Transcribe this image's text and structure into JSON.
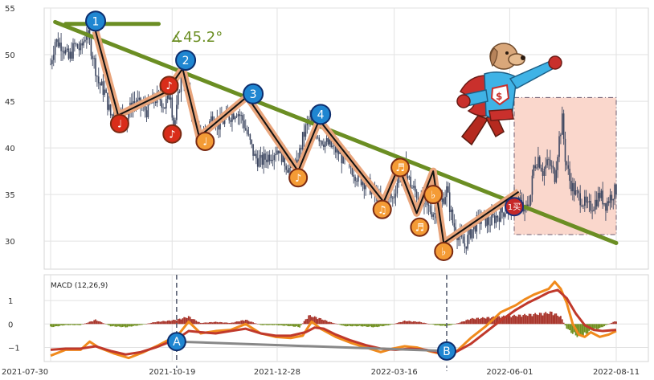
{
  "chart_data": [
    {
      "type": "candlestick",
      "ylim": [
        27,
        55
      ],
      "ygrid": [
        30,
        35,
        40,
        45,
        50,
        55
      ],
      "xlabels": [
        "2021-07-30",
        "2021-10-19",
        "2021-12-28",
        "2022-03-16",
        "2022-06-01",
        "2022-08-11"
      ],
      "x_tick_days": [
        0,
        81,
        151,
        229,
        306,
        377
      ],
      "x_range_days": [
        0,
        377
      ],
      "close_path": [
        [
          0,
          49
        ],
        [
          3,
          51.5
        ],
        [
          8,
          51
        ],
        [
          12,
          49.5
        ],
        [
          16,
          51
        ],
        [
          20,
          50.5
        ],
        [
          24,
          52.5
        ],
        [
          28,
          50
        ],
        [
          32,
          47
        ],
        [
          36,
          46
        ],
        [
          40,
          43.5
        ],
        [
          45,
          44
        ],
        [
          50,
          43
        ],
        [
          55,
          45
        ],
        [
          60,
          44.5
        ],
        [
          64,
          44
        ],
        [
          68,
          45
        ],
        [
          72,
          45.5
        ],
        [
          76,
          44.5
        ],
        [
          80,
          46
        ],
        [
          82,
          42
        ],
        [
          84,
          44
        ],
        [
          87,
          48
        ],
        [
          90,
          47
        ],
        [
          93,
          45
        ],
        [
          96,
          43
        ],
        [
          100,
          41
        ],
        [
          104,
          42
        ],
        [
          108,
          43.5
        ],
        [
          112,
          42.5
        ],
        [
          116,
          43
        ],
        [
          120,
          43.5
        ],
        [
          124,
          44
        ],
        [
          128,
          43
        ],
        [
          132,
          41
        ],
        [
          136,
          39
        ],
        [
          140,
          38.5
        ],
        [
          144,
          39
        ],
        [
          148,
          39.5
        ],
        [
          152,
          40
        ],
        [
          156,
          38.5
        ],
        [
          160,
          37.5
        ],
        [
          164,
          38
        ],
        [
          168,
          41
        ],
        [
          172,
          43
        ],
        [
          176,
          42
        ],
        [
          180,
          41
        ],
        [
          184,
          40.5
        ],
        [
          188,
          40
        ],
        [
          192,
          39.5
        ],
        [
          196,
          38.5
        ],
        [
          200,
          38
        ],
        [
          204,
          37
        ],
        [
          208,
          36.5
        ],
        [
          212,
          36
        ],
        [
          216,
          35
        ],
        [
          220,
          34
        ],
        [
          224,
          35
        ],
        [
          228,
          34.5
        ],
        [
          232,
          37
        ],
        [
          236,
          38
        ],
        [
          240,
          36
        ],
        [
          244,
          35
        ],
        [
          248,
          34
        ],
        [
          252,
          33.5
        ],
        [
          256,
          33
        ],
        [
          260,
          34
        ],
        [
          264,
          35.5
        ],
        [
          268,
          32
        ],
        [
          272,
          30.5
        ],
        [
          276,
          29.5
        ],
        [
          280,
          31
        ],
        [
          284,
          32
        ],
        [
          288,
          32.5
        ],
        [
          292,
          32
        ],
        [
          296,
          32.5
        ],
        [
          300,
          33
        ],
        [
          304,
          33.5
        ],
        [
          308,
          34
        ],
        [
          312,
          34.5
        ],
        [
          316,
          33
        ],
        [
          320,
          35
        ],
        [
          322,
          38
        ],
        [
          325,
          39
        ],
        [
          328,
          37.5
        ],
        [
          332,
          38.5
        ],
        [
          336,
          37
        ],
        [
          339,
          41
        ],
        [
          341,
          43
        ],
        [
          343,
          39
        ],
        [
          346,
          36.5
        ],
        [
          350,
          35
        ],
        [
          354,
          34.5
        ],
        [
          358,
          33.5
        ],
        [
          362,
          34
        ],
        [
          366,
          35
        ],
        [
          370,
          34
        ],
        [
          374,
          35
        ],
        [
          377,
          35.5
        ]
      ],
      "trendline": {
        "from": [
          3,
          53.5
        ],
        "to": [
          377,
          29.8
        ],
        "color": "#6b8e23"
      },
      "angle_label": "∡45.2°",
      "zigzag": [
        [
          30,
          52.5
        ],
        [
          45,
          43.5
        ],
        [
          77,
          46
        ],
        [
          88,
          48.5
        ],
        [
          99,
          41.2
        ],
        [
          131,
          45.5
        ],
        [
          165,
          37.5
        ],
        [
          179,
          43
        ],
        [
          222,
          34.2
        ],
        [
          232,
          38
        ],
        [
          244,
          33
        ],
        [
          255,
          37.5
        ],
        [
          262,
          29.8
        ],
        [
          312,
          35.3
        ]
      ],
      "numbered_markers": [
        {
          "label": "1",
          "day": 30,
          "price": 53.6
        },
        {
          "label": "2",
          "day": 90,
          "price": 49.4
        },
        {
          "label": "3",
          "day": 135,
          "price": 45.8
        },
        {
          "label": "4",
          "day": 180,
          "price": 43.6
        }
      ],
      "note_markers": [
        {
          "glyph": "♩",
          "day": 46,
          "price": 42.6,
          "fill": "#d92d1a"
        },
        {
          "glyph": "♪",
          "day": 79,
          "price": 46.7,
          "fill": "#d92d1a"
        },
        {
          "glyph": "♪",
          "day": 81,
          "price": 41.5,
          "fill": "#d92d1a"
        },
        {
          "glyph": "♩",
          "day": 103,
          "price": 40.7,
          "fill": "#f49b35"
        },
        {
          "glyph": "♪",
          "day": 165,
          "price": 36.8,
          "fill": "#f49b35"
        },
        {
          "glyph": "♫",
          "day": 221,
          "price": 33.4,
          "fill": "#f49b35"
        },
        {
          "glyph": "♬",
          "day": 233,
          "price": 37.9,
          "fill": "#f49b35"
        },
        {
          "glyph": "♬",
          "day": 246,
          "price": 31.5,
          "fill": "#f49b35"
        },
        {
          "glyph": "♭",
          "day": 255,
          "price": 35,
          "fill": "#f49b35"
        },
        {
          "glyph": "♭",
          "day": 262,
          "price": 28.9,
          "fill": "#f49b35"
        }
      ],
      "target_marker": {
        "label": "1买",
        "day": 309,
        "price": 33.7
      },
      "forecast_box": {
        "day_from": 309,
        "day_to": 377,
        "price_from": 30.7,
        "price_to": 45.4
      }
    },
    {
      "type": "line",
      "title": "MACD (12,26,9)",
      "ylim": [
        -1.6,
        2.1
      ],
      "yticks": [
        -1,
        0,
        1
      ],
      "dashed_vlines_days": [
        84,
        264
      ],
      "series": [
        {
          "color": "#f08a1c",
          "points": [
            [
              0,
              -1.35
            ],
            [
              10,
              -1.1
            ],
            [
              20,
              -1.1
            ],
            [
              26,
              -0.75
            ],
            [
              32,
              -1.0
            ],
            [
              42,
              -1.25
            ],
            [
              52,
              -1.45
            ],
            [
              62,
              -1.2
            ],
            [
              72,
              -0.9
            ],
            [
              78,
              -0.7
            ],
            [
              84,
              -0.55
            ],
            [
              92,
              0.1
            ],
            [
              100,
              -0.4
            ],
            [
              110,
              -0.3
            ],
            [
              120,
              -0.25
            ],
            [
              130,
              0.0
            ],
            [
              140,
              -0.4
            ],
            [
              150,
              -0.55
            ],
            [
              160,
              -0.6
            ],
            [
              168,
              -0.5
            ],
            [
              174,
              0.1
            ],
            [
              180,
              -0.2
            ],
            [
              190,
              -0.55
            ],
            [
              200,
              -0.8
            ],
            [
              210,
              -1.0
            ],
            [
              220,
              -1.2
            ],
            [
              228,
              -1.05
            ],
            [
              236,
              -0.95
            ],
            [
              244,
              -1.0
            ],
            [
              252,
              -1.15
            ],
            [
              262,
              -1.3
            ],
            [
              270,
              -1.2
            ],
            [
              280,
              -0.6
            ],
            [
              290,
              -0.1
            ],
            [
              300,
              0.5
            ],
            [
              310,
              0.8
            ],
            [
              316,
              1.05
            ],
            [
              322,
              1.25
            ],
            [
              328,
              1.4
            ],
            [
              332,
              1.5
            ],
            [
              336,
              1.8
            ],
            [
              340,
              1.5
            ],
            [
              344,
              0.9
            ],
            [
              348,
              0.0
            ],
            [
              352,
              -0.45
            ],
            [
              356,
              -0.55
            ],
            [
              360,
              -0.35
            ],
            [
              366,
              -0.55
            ],
            [
              372,
              -0.45
            ],
            [
              377,
              -0.3
            ]
          ]
        },
        {
          "color": "#c0392b",
          "points": [
            [
              0,
              -1.1
            ],
            [
              10,
              -1.05
            ],
            [
              20,
              -1.05
            ],
            [
              30,
              -0.95
            ],
            [
              40,
              -1.15
            ],
            [
              50,
              -1.3
            ],
            [
              60,
              -1.2
            ],
            [
              70,
              -1.0
            ],
            [
              78,
              -0.8
            ],
            [
              84,
              -0.65
            ],
            [
              92,
              -0.3
            ],
            [
              100,
              -0.35
            ],
            [
              110,
              -0.4
            ],
            [
              120,
              -0.3
            ],
            [
              130,
              -0.2
            ],
            [
              140,
              -0.4
            ],
            [
              150,
              -0.5
            ],
            [
              160,
              -0.5
            ],
            [
              170,
              -0.35
            ],
            [
              176,
              -0.15
            ],
            [
              182,
              -0.2
            ],
            [
              190,
              -0.45
            ],
            [
              200,
              -0.7
            ],
            [
              210,
              -0.9
            ],
            [
              220,
              -1.05
            ],
            [
              230,
              -1.1
            ],
            [
              240,
              -1.05
            ],
            [
              250,
              -1.1
            ],
            [
              262,
              -1.25
            ],
            [
              270,
              -1.2
            ],
            [
              280,
              -0.85
            ],
            [
              290,
              -0.35
            ],
            [
              300,
              0.15
            ],
            [
              310,
              0.6
            ],
            [
              318,
              0.9
            ],
            [
              326,
              1.15
            ],
            [
              332,
              1.35
            ],
            [
              338,
              1.45
            ],
            [
              344,
              1.1
            ],
            [
              350,
              0.45
            ],
            [
              356,
              -0.05
            ],
            [
              362,
              -0.25
            ],
            [
              368,
              -0.3
            ],
            [
              377,
              -0.25
            ]
          ]
        }
      ],
      "histogram_envelope": [
        [
          0,
          -0.15
        ],
        [
          10,
          -0.05
        ],
        [
          20,
          -0.05
        ],
        [
          30,
          0.2
        ],
        [
          40,
          -0.1
        ],
        [
          50,
          -0.15
        ],
        [
          60,
          -0.05
        ],
        [
          70,
          0.1
        ],
        [
          78,
          0.15
        ],
        [
          84,
          0.2
        ],
        [
          92,
          0.35
        ],
        [
          100,
          0.05
        ],
        [
          110,
          0.1
        ],
        [
          120,
          0.05
        ],
        [
          130,
          0.2
        ],
        [
          140,
          -0.05
        ],
        [
          150,
          -0.05
        ],
        [
          160,
          -0.1
        ],
        [
          166,
          -0.15
        ],
        [
          172,
          0.4
        ],
        [
          178,
          0.3
        ],
        [
          186,
          0.1
        ],
        [
          196,
          -0.1
        ],
        [
          206,
          -0.1
        ],
        [
          216,
          -0.15
        ],
        [
          226,
          -0.05
        ],
        [
          236,
          0.15
        ],
        [
          246,
          0.1
        ],
        [
          256,
          -0.05
        ],
        [
          264,
          -0.1
        ],
        [
          272,
          0.05
        ],
        [
          280,
          0.25
        ],
        [
          290,
          0.3
        ],
        [
          300,
          0.35
        ],
        [
          310,
          0.4
        ],
        [
          320,
          0.45
        ],
        [
          328,
          0.5
        ],
        [
          334,
          0.55
        ],
        [
          340,
          0.35
        ],
        [
          344,
          -0.2
        ],
        [
          348,
          -0.45
        ],
        [
          352,
          -0.6
        ],
        [
          356,
          -0.5
        ],
        [
          360,
          -0.3
        ],
        [
          366,
          -0.2
        ],
        [
          372,
          0.0
        ],
        [
          377,
          0.15
        ]
      ],
      "divergence_markers": [
        {
          "label": "A",
          "day": 84,
          "value": -0.75
        },
        {
          "label": "B",
          "day": 264,
          "value": -1.15
        }
      ]
    }
  ],
  "mascot": {
    "name": "superhero-dog-icon",
    "emblem": "$"
  }
}
